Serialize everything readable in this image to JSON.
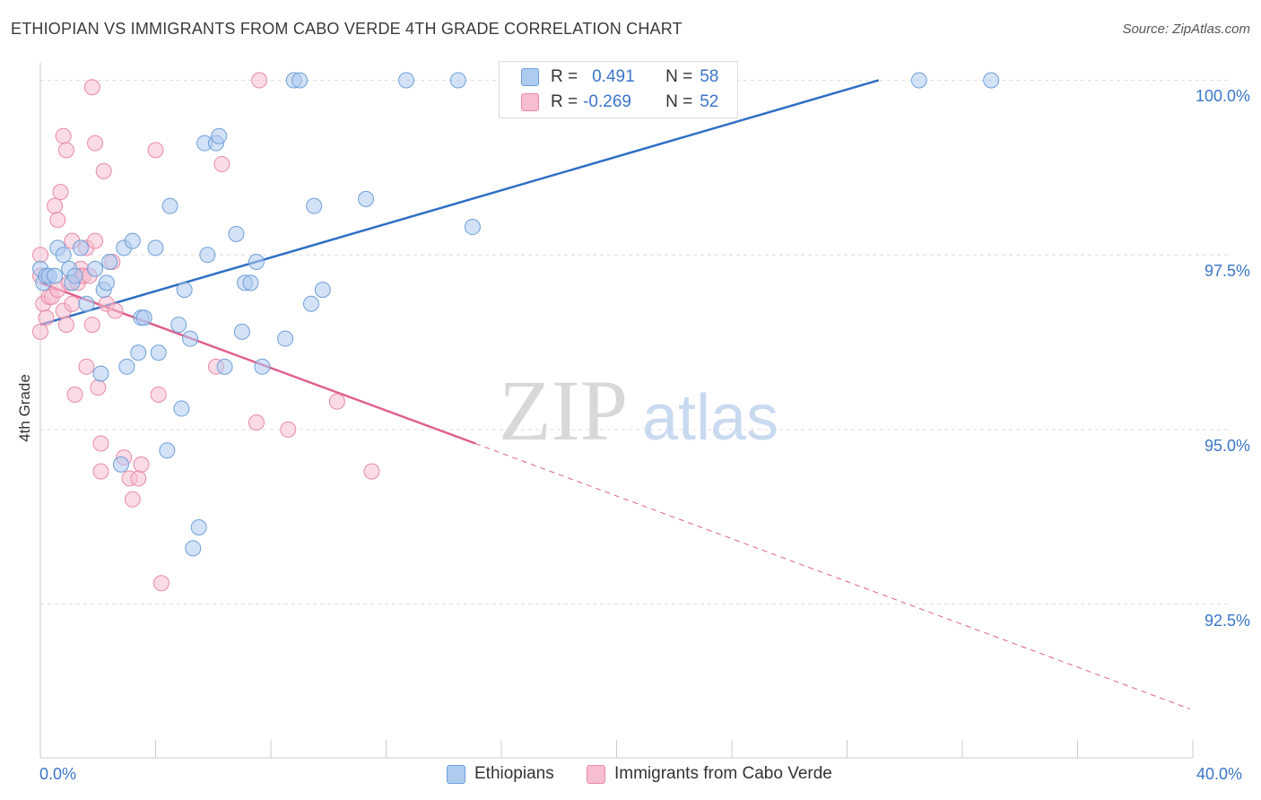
{
  "header": {
    "title": "ETHIOPIAN VS IMMIGRANTS FROM CABO VERDE 4TH GRADE CORRELATION CHART",
    "source": "Source: ZipAtlas.com"
  },
  "watermark": {
    "zip": "ZIP",
    "atlas": "atlas"
  },
  "legend": {
    "rows": [
      {
        "r_label": "R =",
        "r_value": "0.491",
        "n_label": "N =",
        "n_value": "58"
      },
      {
        "r_label": "R =",
        "r_value": "-0.269",
        "n_label": "N =",
        "n_value": "52"
      }
    ]
  },
  "colors": {
    "ethiopians_fill": "#aecbf0",
    "ethiopians_stroke": "#6f9fd8",
    "ethiopians_line": "#2f6fc4",
    "cabo_fill": "#f7bdd0",
    "cabo_stroke": "#e88aa8",
    "cabo_line": "#e0608e",
    "axis_text": "#3a76c8"
  },
  "chart_data": {
    "type": "scatter",
    "title": "ETHIOPIAN VS IMMIGRANTS FROM CABO VERDE 4TH GRADE CORRELATION CHART",
    "xlabel": "",
    "ylabel": "4th Grade",
    "xlim": [
      0,
      40
    ],
    "ylim": [
      90.3,
      100.25
    ],
    "x_tick_labels": [
      "0.0%",
      "40.0%"
    ],
    "y_ticks": [
      92.5,
      95.0,
      97.5,
      100.0
    ],
    "y_tick_labels": [
      "92.5%",
      "95.0%",
      "97.5%",
      "100.0%"
    ],
    "grid": true,
    "legend_position": "bottom",
    "series": [
      {
        "name": "Ethiopians",
        "r": 0.491,
        "n": 58,
        "trend": {
          "x": [
            0,
            29.1
          ],
          "y": [
            96.5,
            100.0
          ]
        },
        "points": [
          [
            0.0,
            97.3
          ],
          [
            0.1,
            97.1
          ],
          [
            0.2,
            97.2
          ],
          [
            0.3,
            97.2
          ],
          [
            0.5,
            97.2
          ],
          [
            0.6,
            97.6
          ],
          [
            0.8,
            97.5
          ],
          [
            1.0,
            97.3
          ],
          [
            1.1,
            97.1
          ],
          [
            1.2,
            97.2
          ],
          [
            1.4,
            97.6
          ],
          [
            1.6,
            96.8
          ],
          [
            1.9,
            97.3
          ],
          [
            2.2,
            97.0
          ],
          [
            2.3,
            97.1
          ],
          [
            2.4,
            97.4
          ],
          [
            2.1,
            95.8
          ],
          [
            2.9,
            97.6
          ],
          [
            3.0,
            95.9
          ],
          [
            3.2,
            97.7
          ],
          [
            3.4,
            96.1
          ],
          [
            3.5,
            96.6
          ],
          [
            3.6,
            96.6
          ],
          [
            4.0,
            97.6
          ],
          [
            4.1,
            96.1
          ],
          [
            4.5,
            98.2
          ],
          [
            4.8,
            96.5
          ],
          [
            4.9,
            95.3
          ],
          [
            5.0,
            97.0
          ],
          [
            5.2,
            96.3
          ],
          [
            5.7,
            99.1
          ],
          [
            5.8,
            97.5
          ],
          [
            6.1,
            99.1
          ],
          [
            6.2,
            99.2
          ],
          [
            6.4,
            95.9
          ],
          [
            6.8,
            97.8
          ],
          [
            7.0,
            96.4
          ],
          [
            7.1,
            97.1
          ],
          [
            7.3,
            97.1
          ],
          [
            7.5,
            97.4
          ],
          [
            7.7,
            95.9
          ],
          [
            8.5,
            96.3
          ],
          [
            8.8,
            100.0
          ],
          [
            9.0,
            100.0
          ],
          [
            9.4,
            96.8
          ],
          [
            9.5,
            98.2
          ],
          [
            9.8,
            97.0
          ],
          [
            11.3,
            98.3
          ],
          [
            12.7,
            100.0
          ],
          [
            14.5,
            100.0
          ],
          [
            15.0,
            97.9
          ],
          [
            22.0,
            100.0
          ],
          [
            30.5,
            100.0
          ],
          [
            33.0,
            100.0
          ],
          [
            5.5,
            93.6
          ],
          [
            5.3,
            93.3
          ],
          [
            4.4,
            94.7
          ],
          [
            2.8,
            94.5
          ]
        ]
      },
      {
        "name": "Immigrants from Cabo Verde",
        "r": -0.269,
        "n": 52,
        "trend": {
          "x": [
            0,
            15.1
          ],
          "y": [
            97.1,
            94.8
          ]
        },
        "trend_dashed": {
          "x": [
            15.1,
            39.9
          ],
          "y": [
            94.8,
            91.0
          ]
        },
        "points": [
          [
            0.0,
            97.5
          ],
          [
            0.0,
            97.2
          ],
          [
            0.0,
            96.4
          ],
          [
            0.1,
            96.8
          ],
          [
            0.2,
            96.6
          ],
          [
            0.3,
            96.9
          ],
          [
            0.4,
            96.9
          ],
          [
            0.5,
            98.2
          ],
          [
            0.6,
            98.0
          ],
          [
            0.6,
            97.0
          ],
          [
            0.7,
            98.4
          ],
          [
            0.8,
            96.7
          ],
          [
            0.8,
            99.2
          ],
          [
            0.9,
            99.0
          ],
          [
            0.9,
            96.5
          ],
          [
            1.0,
            97.1
          ],
          [
            1.1,
            97.7
          ],
          [
            1.1,
            96.8
          ],
          [
            1.2,
            95.5
          ],
          [
            1.3,
            97.1
          ],
          [
            1.4,
            97.3
          ],
          [
            1.4,
            97.2
          ],
          [
            1.5,
            97.2
          ],
          [
            1.6,
            97.6
          ],
          [
            1.6,
            95.9
          ],
          [
            1.7,
            97.2
          ],
          [
            1.8,
            99.9
          ],
          [
            1.8,
            96.5
          ],
          [
            1.9,
            99.1
          ],
          [
            1.9,
            97.7
          ],
          [
            2.0,
            95.6
          ],
          [
            2.1,
            94.8
          ],
          [
            2.1,
            94.4
          ],
          [
            2.2,
            98.7
          ],
          [
            2.3,
            96.8
          ],
          [
            2.5,
            97.4
          ],
          [
            2.6,
            96.7
          ],
          [
            2.9,
            94.6
          ],
          [
            3.1,
            94.3
          ],
          [
            3.2,
            94.0
          ],
          [
            3.4,
            94.3
          ],
          [
            3.5,
            94.5
          ],
          [
            4.0,
            99.0
          ],
          [
            4.1,
            95.5
          ],
          [
            4.2,
            92.8
          ],
          [
            6.1,
            95.9
          ],
          [
            6.3,
            98.8
          ],
          [
            7.5,
            95.1
          ],
          [
            7.6,
            100.0
          ],
          [
            8.6,
            95.0
          ],
          [
            10.3,
            95.4
          ],
          [
            11.5,
            94.4
          ]
        ]
      }
    ]
  },
  "bottom_legend": {
    "items": [
      {
        "label": "Ethiopians"
      },
      {
        "label": "Immigrants from Cabo Verde"
      }
    ]
  }
}
